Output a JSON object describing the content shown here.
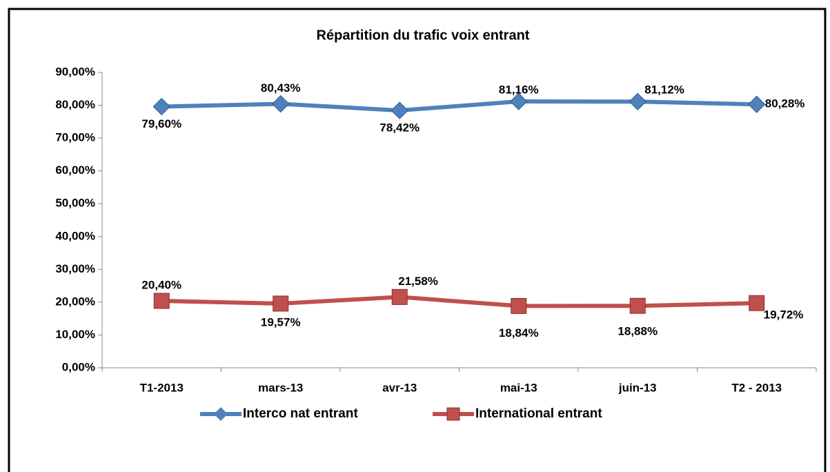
{
  "chart_data": {
    "type": "line",
    "title": "Répartition du trafic voix entrant",
    "categories": [
      "T1-2013",
      "mars-13",
      "avr-13",
      "mai-13",
      "juin-13",
      "T2 - 2013"
    ],
    "series": [
      {
        "name": "Interco nat entrant",
        "color": "#4f81bd",
        "values": [
          79.6,
          80.43,
          78.42,
          81.16,
          81.12,
          80.28
        ],
        "value_labels": [
          "79,60%",
          "80,43%",
          "78,42%",
          "81,16%",
          "81,12%",
          "80,28%"
        ]
      },
      {
        "name": "International entrant",
        "color": "#c0504d",
        "values": [
          20.4,
          19.57,
          21.58,
          18.84,
          18.88,
          19.72
        ],
        "value_labels": [
          "20,40%",
          "19,57%",
          "21,58%",
          "18,84%",
          "18,88%",
          "19,72%"
        ]
      }
    ],
    "ylim": [
      0,
      90
    ],
    "yticks": [
      {
        "value": 0,
        "label": "0,00%"
      },
      {
        "value": 10,
        "label": "10,00%"
      },
      {
        "value": 20,
        "label": "20,00%"
      },
      {
        "value": 30,
        "label": "30,00%"
      },
      {
        "value": 40,
        "label": "40,00%"
      },
      {
        "value": 50,
        "label": "50,00%"
      },
      {
        "value": 60,
        "label": "60,00%"
      },
      {
        "value": 70,
        "label": "70,00%"
      },
      {
        "value": 80,
        "label": "80,00%"
      },
      {
        "value": 90,
        "label": "90,00%"
      }
    ],
    "legend": "bottom"
  }
}
